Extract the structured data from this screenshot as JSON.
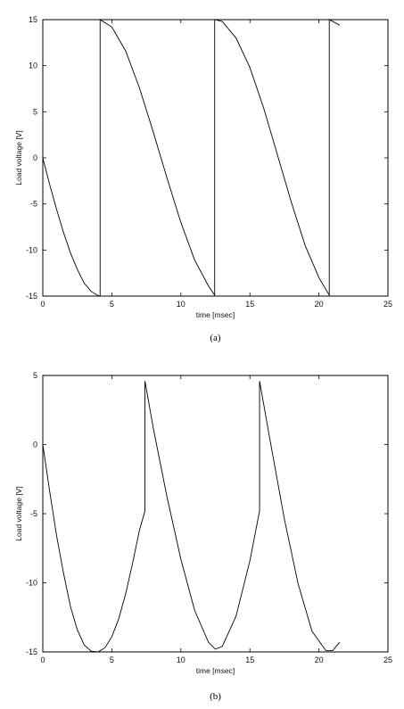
{
  "chart_data": [
    {
      "type": "line",
      "caption": "(a)",
      "xlabel": "time [msec]",
      "ylabel": "Load voltage [V]",
      "xlim": [
        0,
        25
      ],
      "ylim": [
        -15,
        15
      ],
      "xticks": [
        0,
        5,
        10,
        15,
        20,
        25
      ],
      "yticks": [
        -15,
        -10,
        -5,
        0,
        5,
        10,
        15
      ],
      "grid": false,
      "series": [
        {
          "x": [
            0,
            0.5,
            1.0,
            1.5,
            2.0,
            2.5,
            3.0,
            3.5,
            4.0,
            4.15,
            4.15,
            5.0,
            6.0,
            7.0,
            8.0,
            9.0,
            10.0,
            11.0,
            12.0,
            12.45,
            12.45,
            13.0,
            14.0,
            15.0,
            16.0,
            17.0,
            18.0,
            19.0,
            20.0,
            20.75,
            20.75,
            21.0,
            21.5
          ],
          "y": [
            0,
            -2.9,
            -5.6,
            -8.1,
            -10.3,
            -12.1,
            -13.6,
            -14.5,
            -14.95,
            -15,
            15,
            14.2,
            11.6,
            7.6,
            2.8,
            -2.2,
            -7.0,
            -11.1,
            -13.9,
            -14.9,
            15,
            14.8,
            13.0,
            9.8,
            5.4,
            0.3,
            -4.8,
            -9.5,
            -13.0,
            -14.9,
            15,
            14.8,
            14.4
          ]
        }
      ]
    },
    {
      "type": "line",
      "caption": "(b)",
      "xlabel": "time [msec]",
      "ylabel": "Load voltage [V]",
      "xlim": [
        0,
        25
      ],
      "ylim": [
        -15,
        5
      ],
      "xticks": [
        0,
        5,
        10,
        15,
        20,
        25
      ],
      "yticks": [
        -15,
        -10,
        -5,
        0,
        5
      ],
      "grid": false,
      "series": [
        {
          "x": [
            0,
            0.5,
            1.0,
            1.5,
            2.0,
            2.5,
            3.0,
            3.5,
            4.0,
            4.5,
            5.0,
            5.5,
            6.0,
            6.5,
            7.0,
            7.4,
            7.4,
            8.0,
            9.0,
            10.0,
            11.0,
            12.0,
            12.5,
            13.0,
            14.0,
            15.0,
            15.7,
            15.7,
            16.5,
            17.5,
            18.5,
            19.5,
            20.5,
            21.0,
            21.5
          ],
          "y": [
            0,
            -3.4,
            -6.6,
            -9.3,
            -11.7,
            -13.4,
            -14.5,
            -14.95,
            -15,
            -14.7,
            -13.9,
            -12.6,
            -10.8,
            -8.6,
            -6.2,
            -4.8,
            4.6,
            1.2,
            -3.8,
            -8.3,
            -12.0,
            -14.3,
            -14.8,
            -14.6,
            -12.4,
            -8.4,
            -4.8,
            4.6,
            0.1,
            -5.4,
            -10.1,
            -13.5,
            -14.9,
            -14.9,
            -14.3
          ]
        }
      ]
    }
  ]
}
